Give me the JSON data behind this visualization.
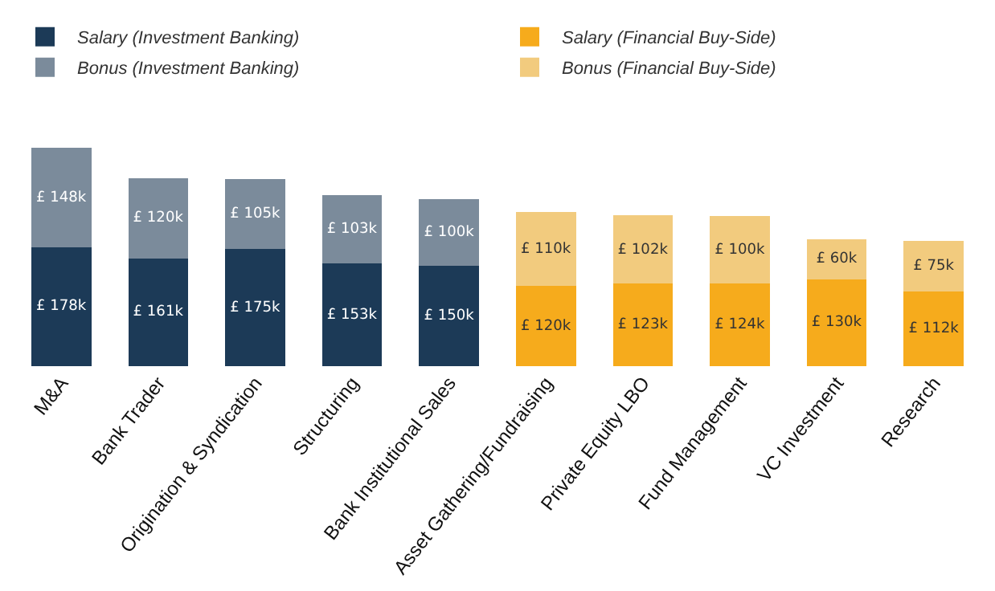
{
  "chart_data": {
    "type": "bar",
    "stacked": true,
    "legend": "top",
    "tick_labels": "x",
    "categories": [
      "M&A",
      "Bank Trader",
      "Origination & Syndication",
      "Structuring",
      "Bank Institutional Sales",
      "Asset Gathering/Fundraising",
      "Private Equity LBO",
      "Fund Management",
      "VC Investment",
      "Research"
    ],
    "series": [
      {
        "name": "Salary (Investment Banking)",
        "color": "#1c3a57",
        "values": [
          178,
          161,
          175,
          153,
          150,
          null,
          null,
          null,
          null,
          null
        ],
        "value_labels": [
          "£ 178k",
          "£ 161k",
          "£ 175k",
          "£ 153k",
          "£ 150k",
          null,
          null,
          null,
          null,
          null
        ]
      },
      {
        "name": "Salary (Financial Buy-Side)",
        "color": "#f6ab1c",
        "values": [
          null,
          null,
          null,
          null,
          null,
          120,
          123,
          124,
          130,
          112
        ],
        "value_labels": [
          null,
          null,
          null,
          null,
          null,
          "£ 120k",
          "£ 123k",
          "£ 124k",
          "£ 130k",
          "£ 112k"
        ]
      },
      {
        "name": "Bonus (Investment Banking)",
        "color": "#7b8b9b",
        "values": [
          148,
          120,
          105,
          103,
          100,
          null,
          null,
          null,
          null,
          null
        ],
        "value_labels": [
          "£ 148k",
          "£ 120k",
          "£ 105k",
          "£ 103k",
          "£ 100k",
          null,
          null,
          null,
          null,
          null
        ]
      },
      {
        "name": "Bonus (Financial Buy-Side)",
        "color": "#f2cb7e",
        "values": [
          null,
          null,
          null,
          null,
          null,
          110,
          102,
          100,
          60,
          75
        ],
        "value_labels": [
          null,
          null,
          null,
          null,
          null,
          "£ 110k",
          "£ 102k",
          "£ 100k",
          "£ 60k",
          "£ 75k"
        ]
      }
    ]
  }
}
